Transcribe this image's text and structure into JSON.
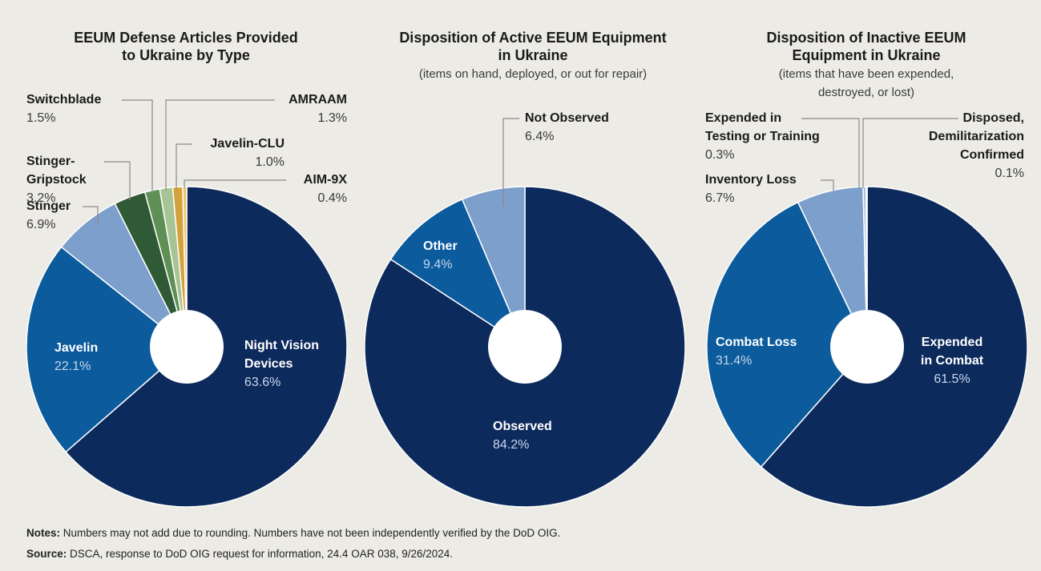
{
  "chart_data": [
    {
      "type": "pie",
      "title": "EEUM Defense Articles Provided\nto Ukraine by Type",
      "categories": [
        "Night Vision\nDevices",
        "Javelin",
        "Stinger",
        "Stinger-\nGripstock",
        "Switchblade",
        "AMRAAM",
        "Javelin-CLU",
        "AIM-9X"
      ],
      "values": [
        63.6,
        22.1,
        6.9,
        3.2,
        1.5,
        1.3,
        1.0,
        0.4
      ],
      "value_labels": [
        "63.6%",
        "22.1%",
        "6.9%",
        "3.2%",
        "1.5%",
        "1.3%",
        "1.0%",
        "0.4%"
      ],
      "colors": [
        "#0d2a5c",
        "#0b5b9d",
        "#7c9fcb",
        "#2f5a35",
        "#5e8f55",
        "#a7c594",
        "#d4a23c",
        "#f0c463"
      ]
    },
    {
      "type": "pie",
      "title": "Disposition of Active EEUM Equipment\nin Ukraine",
      "subtitle": "(items on hand, deployed, or out for repair)",
      "categories": [
        "Observed",
        "Other",
        "Not Observed"
      ],
      "values": [
        84.2,
        9.4,
        6.4
      ],
      "value_labels": [
        "84.2%",
        "9.4%",
        "6.4%"
      ],
      "colors": [
        "#0d2a5c",
        "#0b5b9d",
        "#7c9fcb"
      ]
    },
    {
      "type": "pie",
      "title": "Disposition of Inactive EEUM\nEquipment in Ukraine",
      "subtitle": "(items that have been expended,\ndestroyed, or lost)",
      "categories": [
        "Expended\nin Combat",
        "Combat Loss",
        "Inventory Loss",
        "Expended in\nTesting or Training",
        "Disposed,\nDemilitarization\nConfirmed"
      ],
      "values": [
        61.5,
        31.4,
        6.7,
        0.3,
        0.1
      ],
      "value_labels": [
        "61.5%",
        "31.4%",
        "6.7%",
        "0.3%",
        "0.1%"
      ],
      "colors": [
        "#0d2a5c",
        "#0b5b9d",
        "#7c9fcb",
        "#a9bfdc",
        "#c7d4e6"
      ]
    }
  ],
  "notes": {
    "label": "Notes:",
    "text": "Numbers may not add due to rounding. Numbers have not been independently verified by the DoD OIG."
  },
  "source": {
    "label": "Source:",
    "text": "DSCA, response to DoD OIG request for information, 24.4 OAR 038, 9/26/2024."
  }
}
